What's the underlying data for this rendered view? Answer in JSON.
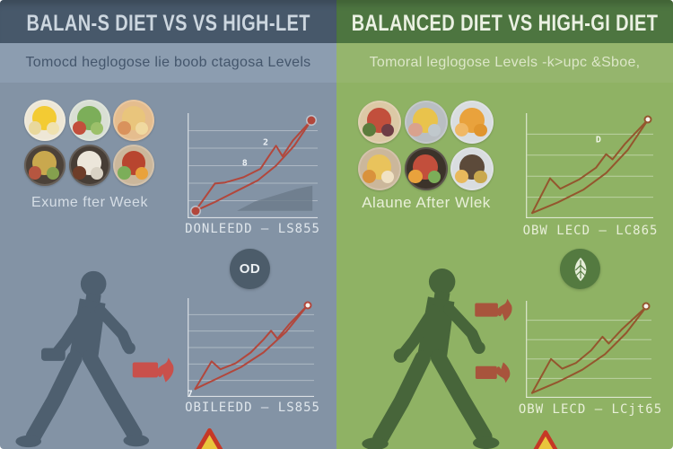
{
  "left_panel": {
    "title": "BALAN-S DIET VS VS HIGH-LET",
    "subtitle": "Tomocd heglogose lie boob ctagosa Levels",
    "food_label": "Exume fter Week",
    "badge_label": "OD",
    "foods": [
      {
        "name": "eggs-plate",
        "plate": "#eee7d6",
        "blobs": [
          "#f3cb33",
          "#e9d89c",
          "#f0e2b0"
        ]
      },
      {
        "name": "salad-bowl",
        "plate": "#d9dfd4",
        "blobs": [
          "#7cae59",
          "#c24f3c",
          "#9cc06a"
        ]
      },
      {
        "name": "bread-basket",
        "plate": "#e5bd8e",
        "blobs": [
          "#e9c57c",
          "#d9925c",
          "#f0d9a0"
        ]
      },
      {
        "name": "roast-veggie-plate",
        "plate": "#4c4239",
        "blobs": [
          "#c9a84e",
          "#b65640",
          "#85a04e"
        ]
      },
      {
        "name": "soup-plate",
        "plate": "#473e36",
        "blobs": [
          "#ece6da",
          "#6e3d29",
          "#d9d2c4"
        ]
      },
      {
        "name": "salad-box",
        "plate": "#cbb79b",
        "blobs": [
          "#b8452f",
          "#7cae59",
          "#e9a23c"
        ]
      }
    ],
    "colors": {
      "header_bg": "#47586a",
      "title_color": "#ccd6df",
      "subtitle_bg": "#8c9db0",
      "subtitle_color": "#44566c",
      "main_bg": "#8393a5",
      "caption_color": "#dfe6ec",
      "label_color": "#d5dde5",
      "badge_bg": "#4c5c6a",
      "badge_color": "#edf1f4",
      "person_color": "#4e5f6f",
      "alert_color": "#c9504b"
    }
  },
  "right_panel": {
    "title": "BALANCED DIET VS HIGH-GI DIET",
    "subtitle": "Tomoral leglogose Levels -k>upc &Sboe,",
    "food_label": "Alaune After Wlek",
    "foods": [
      {
        "name": "tomato-greens-bowl",
        "plate": "#dcc9a6",
        "blobs": [
          "#c24f3c",
          "#5c7c3c",
          "#6e3d45"
        ]
      },
      {
        "name": "shrimp-potato-plate",
        "plate": "#b9bec2",
        "blobs": [
          "#e9c34c",
          "#d9a28e",
          "#c0c8cc"
        ]
      },
      {
        "name": "fries-plate",
        "plate": "#d9dde0",
        "blobs": [
          "#e9a23c",
          "#f0b865",
          "#e0952e"
        ]
      },
      {
        "name": "noodle-bowl",
        "plate": "#cbb79b",
        "blobs": [
          "#e9c35c",
          "#d9923c",
          "#f0e2c4"
        ]
      },
      {
        "name": "snack-bowl",
        "plate": "#3c332a",
        "blobs": [
          "#c24f3c",
          "#e9a23c",
          "#7cae59"
        ]
      },
      {
        "name": "cutting-board-plate",
        "plate": "#d9dde0",
        "blobs": [
          "#5c4a3a",
          "#e9b95c",
          "#c9a84e"
        ]
      }
    ],
    "colors": {
      "header_bg": "#4d7540",
      "title_color": "#ebf1e3",
      "subtitle_bg": "#95b56d",
      "subtitle_color": "#dce6c8",
      "main_bg": "#8fb264",
      "caption_color": "#e8efd8",
      "label_color": "#e8efd8",
      "badge_bg": "#547a40",
      "badge_color": "#e6edd9",
      "person_color": "#47653a",
      "alert_color": "#a8543c"
    }
  },
  "warning": {
    "border": "#c63826",
    "fill": "#e9c53c"
  },
  "chart_data": [
    {
      "id": "left-top-glucose-chart",
      "type": "line",
      "caption": "DONLEEDD – LS855",
      "xlabel": "",
      "ylabel": "",
      "gridlines": 5,
      "line_color": "#b2473c",
      "grid_color": "#ffffff",
      "grid_opacity": 0.35,
      "axis_color": "#ffffff",
      "annotation_color": "#edf2f6",
      "area_color": "#6b7a89",
      "series": [
        {
          "name": "high-gi-line",
          "points": [
            [
              6,
              93
            ],
            [
              21,
              67
            ],
            [
              29,
              66
            ],
            [
              43,
              61
            ],
            [
              56,
              53
            ],
            [
              63,
              40
            ],
            [
              68,
              31
            ],
            [
              73,
              41
            ],
            [
              81,
              26
            ],
            [
              95,
              7
            ]
          ]
        },
        {
          "name": "balanced-line",
          "points": [
            [
              6,
              93
            ],
            [
              22,
              84
            ],
            [
              38,
              74
            ],
            [
              54,
              64
            ],
            [
              68,
              50
            ],
            [
              82,
              31
            ],
            [
              95,
              7
            ]
          ]
        }
      ],
      "area": [
        [
          38,
          93
        ],
        [
          52,
          84
        ],
        [
          68,
          78
        ],
        [
          84,
          72
        ],
        [
          96,
          69
        ],
        [
          96,
          93
        ]
      ],
      "markers": [
        {
          "x": 6,
          "y": 93,
          "style": "filled"
        },
        {
          "x": 95,
          "y": 7,
          "style": "filled"
        }
      ],
      "annotations": [
        {
          "text": "8",
          "x": 44,
          "y": 48
        },
        {
          "text": "2",
          "x": 60,
          "y": 28
        }
      ]
    },
    {
      "id": "left-bottom-glucose-chart",
      "type": "line",
      "caption": "OBILEEDD – LS855",
      "xlabel": "",
      "ylabel": "",
      "gridlines": 5,
      "line_color": "#b2473c",
      "grid_color": "#ffffff",
      "grid_opacity": 0.35,
      "axis_color": "#ffffff",
      "annotation_color": "#edf2f6",
      "series": [
        {
          "name": "high-gi-line",
          "points": [
            [
              6,
              92
            ],
            [
              19,
              64
            ],
            [
              26,
              72
            ],
            [
              38,
              66
            ],
            [
              50,
              55
            ],
            [
              60,
              42
            ],
            [
              66,
              33
            ],
            [
              71,
              41
            ],
            [
              80,
              27
            ],
            [
              95,
              7
            ]
          ]
        },
        {
          "name": "balanced-line",
          "points": [
            [
              6,
              92
            ],
            [
              24,
              81
            ],
            [
              42,
              70
            ],
            [
              60,
              55
            ],
            [
              78,
              34
            ],
            [
              95,
              7
            ]
          ]
        }
      ],
      "markers": [
        {
          "x": 95,
          "y": 7,
          "style": "ring"
        }
      ],
      "annotations": [
        {
          "text": "7",
          "x": 2,
          "y": 97
        }
      ]
    },
    {
      "id": "right-top-glucose-chart",
      "type": "line",
      "caption": "OBW LECD – LC865",
      "xlabel": "",
      "ylabel": "",
      "gridlines": 4,
      "line_color": "#94562e",
      "grid_color": "#ffffff",
      "grid_opacity": 0.4,
      "axis_color": "#ffffff",
      "annotation_color": "#f2f6ea",
      "series": [
        {
          "name": "high-gi-line",
          "points": [
            [
              5,
              95
            ],
            [
              19,
              62
            ],
            [
              27,
              72
            ],
            [
              42,
              63
            ],
            [
              55,
              52
            ],
            [
              63,
              39
            ],
            [
              68,
              44
            ],
            [
              78,
              29
            ],
            [
              96,
              6
            ]
          ]
        },
        {
          "name": "balanced-line",
          "points": [
            [
              5,
              95
            ],
            [
              25,
              85
            ],
            [
              45,
              73
            ],
            [
              63,
              57
            ],
            [
              80,
              35
            ],
            [
              96,
              6
            ]
          ]
        }
      ],
      "markers": [
        {
          "x": 96,
          "y": 6,
          "style": "ring"
        }
      ],
      "annotations": [
        {
          "text": "D",
          "x": 57,
          "y": 26
        }
      ]
    },
    {
      "id": "right-bottom-glucose-chart",
      "type": "line",
      "caption": "OBW LECD – LCjt65",
      "xlabel": "",
      "ylabel": "",
      "gridlines": 4,
      "line_color": "#94562e",
      "grid_color": "#ffffff",
      "grid_opacity": 0.4,
      "axis_color": "#ffffff",
      "annotation_color": "#f2f6ea",
      "series": [
        {
          "name": "high-gi-line",
          "points": [
            [
              5,
              95
            ],
            [
              20,
              60
            ],
            [
              29,
              70
            ],
            [
              40,
              64
            ],
            [
              52,
              51
            ],
            [
              61,
              37
            ],
            [
              66,
              44
            ],
            [
              76,
              30
            ],
            [
              96,
              6
            ]
          ]
        },
        {
          "name": "balanced-line",
          "points": [
            [
              5,
              95
            ],
            [
              25,
              84
            ],
            [
              45,
              71
            ],
            [
              63,
              55
            ],
            [
              80,
              33
            ],
            [
              96,
              6
            ]
          ]
        }
      ],
      "markers": [
        {
          "x": 96,
          "y": 6,
          "style": "ring"
        }
      ],
      "annotations": []
    }
  ]
}
